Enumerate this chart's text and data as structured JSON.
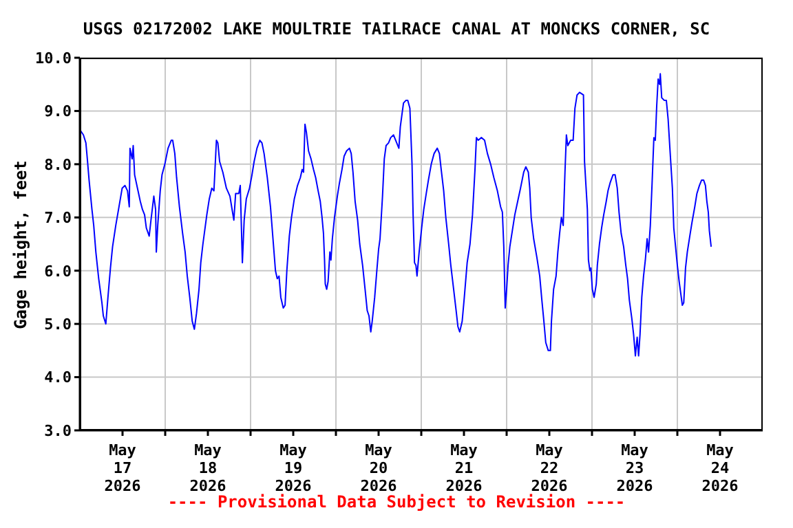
{
  "chart_data": {
    "type": "line",
    "title": "USGS 02172002 LAKE MOULTRIE TAILRACE CANAL AT MONCKS CORNER, SC",
    "ylabel": "Gage height, feet",
    "annotations": [
      "---- Provisional Data Subject to Revision ----"
    ],
    "xlim": [
      "2026-05-17T00:00",
      "2026-05-25T00:00"
    ],
    "xticks": [
      {
        "value": "2026-05-17T12:00",
        "label": "May\n17\n2026"
      },
      {
        "value": "2026-05-18T00:00",
        "label": null
      },
      {
        "value": "2026-05-18T12:00",
        "label": "May\n18\n2026"
      },
      {
        "value": "2026-05-19T00:00",
        "label": null
      },
      {
        "value": "2026-05-19T12:00",
        "label": "May\n19\n2026"
      },
      {
        "value": "2026-05-20T00:00",
        "label": null
      },
      {
        "value": "2026-05-20T12:00",
        "label": "May\n20\n2026"
      },
      {
        "value": "2026-05-21T00:00",
        "label": null
      },
      {
        "value": "2026-05-21T12:00",
        "label": "May\n21\n2026"
      },
      {
        "value": "2026-05-22T00:00",
        "label": null
      },
      {
        "value": "2026-05-22T12:00",
        "label": "May\n22\n2026"
      },
      {
        "value": "2026-05-23T00:00",
        "label": null
      },
      {
        "value": "2026-05-23T12:00",
        "label": "May\n23\n2026"
      },
      {
        "value": "2026-05-24T00:00",
        "label": null
      },
      {
        "value": "2026-05-24T12:00",
        "label": "May\n24\n2026"
      }
    ],
    "ylim": [
      3,
      10
    ],
    "yticks": [
      {
        "value": 3,
        "label": "3.0"
      },
      {
        "value": 4,
        "label": "4.0"
      },
      {
        "value": 5,
        "label": "5.0"
      },
      {
        "value": 6,
        "label": "6.0"
      },
      {
        "value": 7,
        "label": "7.0"
      },
      {
        "value": 8,
        "label": "8.0"
      },
      {
        "value": 9,
        "label": "9.0"
      },
      {
        "value": 10,
        "label": "10.0"
      }
    ],
    "grid": true,
    "marker": "none",
    "line_style": "solid",
    "x": [
      "2026-05-17T00:00",
      "2026-05-17T01:00",
      "2026-05-17T01:42",
      "2026-05-17T02:06",
      "2026-05-17T02:36",
      "2026-05-17T03:24",
      "2026-05-17T03:54",
      "2026-05-17T04:30",
      "2026-05-17T05:18",
      "2026-05-17T06:12",
      "2026-05-17T06:36",
      "2026-05-17T07:18",
      "2026-05-17T07:54",
      "2026-05-17T08:36",
      "2026-05-17T09:12",
      "2026-05-17T10:06",
      "2026-05-17T11:00",
      "2026-05-17T11:54",
      "2026-05-17T12:42",
      "2026-05-17T13:24",
      "2026-05-17T13:54",
      "2026-05-17T14:06",
      "2026-05-17T14:42",
      "2026-05-17T15:00",
      "2026-05-17T15:24",
      "2026-05-17T16:12",
      "2026-05-17T17:00",
      "2026-05-17T17:36",
      "2026-05-17T18:12",
      "2026-05-17T18:42",
      "2026-05-17T19:30",
      "2026-05-17T20:00",
      "2026-05-17T20:48",
      "2026-05-17T21:18",
      "2026-05-17T21:30",
      "2026-05-17T21:54",
      "2026-05-17T22:36",
      "2026-05-17T23:06",
      "2026-05-17T23:54",
      "2026-05-18T00:48",
      "2026-05-18T01:42",
      "2026-05-18T02:06",
      "2026-05-18T02:42",
      "2026-05-18T03:12",
      "2026-05-18T04:00",
      "2026-05-18T04:54",
      "2026-05-18T05:36",
      "2026-05-18T06:12",
      "2026-05-18T06:54",
      "2026-05-18T07:36",
      "2026-05-18T08:12",
      "2026-05-18T08:48",
      "2026-05-18T09:30",
      "2026-05-18T10:00",
      "2026-05-18T10:36",
      "2026-05-18T11:42",
      "2026-05-18T12:24",
      "2026-05-18T13:06",
      "2026-05-18T13:42",
      "2026-05-18T14:24",
      "2026-05-18T14:48",
      "2026-05-18T15:18",
      "2026-05-18T16:12",
      "2026-05-18T17:12",
      "2026-05-18T18:12",
      "2026-05-18T18:48",
      "2026-05-18T19:18",
      "2026-05-18T19:48",
      "2026-05-18T20:42",
      "2026-05-18T21:06",
      "2026-05-18T21:42",
      "2026-05-18T22:12",
      "2026-05-18T22:48",
      "2026-05-18T23:42",
      "2026-05-19T00:24",
      "2026-05-19T01:00",
      "2026-05-19T01:48",
      "2026-05-19T02:36",
      "2026-05-19T03:12",
      "2026-05-19T03:48",
      "2026-05-19T04:42",
      "2026-05-19T05:36",
      "2026-05-19T06:18",
      "2026-05-19T07:00",
      "2026-05-19T07:30",
      "2026-05-19T08:00",
      "2026-05-19T08:30",
      "2026-05-19T09:12",
      "2026-05-19T09:42",
      "2026-05-19T10:12",
      "2026-05-19T10:54",
      "2026-05-19T11:30",
      "2026-05-19T12:18",
      "2026-05-19T13:12",
      "2026-05-19T14:00",
      "2026-05-19T14:30",
      "2026-05-19T14:54",
      "2026-05-19T15:18",
      "2026-05-19T15:42",
      "2026-05-19T16:18",
      "2026-05-19T17:00",
      "2026-05-19T17:42",
      "2026-05-19T18:18",
      "2026-05-19T19:00",
      "2026-05-19T19:36",
      "2026-05-19T20:06",
      "2026-05-19T20:30",
      "2026-05-19T20:48",
      "2026-05-19T21:00",
      "2026-05-19T21:24",
      "2026-05-19T21:48",
      "2026-05-19T22:18",
      "2026-05-19T22:36",
      "2026-05-19T23:00",
      "2026-05-19T23:36",
      "2026-05-20T00:24",
      "2026-05-20T01:00",
      "2026-05-20T01:42",
      "2026-05-20T02:18",
      "2026-05-20T03:00",
      "2026-05-20T03:48",
      "2026-05-20T04:18",
      "2026-05-20T04:48",
      "2026-05-20T05:24",
      "2026-05-20T06:06",
      "2026-05-20T06:42",
      "2026-05-20T07:30",
      "2026-05-20T08:12",
      "2026-05-20T08:48",
      "2026-05-20T09:18",
      "2026-05-20T09:48",
      "2026-05-20T10:12",
      "2026-05-20T10:54",
      "2026-05-20T11:30",
      "2026-05-20T12:00",
      "2026-05-20T12:24",
      "2026-05-20T13:06",
      "2026-05-20T13:36",
      "2026-05-20T14:06",
      "2026-05-20T14:48",
      "2026-05-20T15:24",
      "2026-05-20T16:12",
      "2026-05-20T16:48",
      "2026-05-20T17:42",
      "2026-05-20T18:06",
      "2026-05-20T18:30",
      "2026-05-20T19:00",
      "2026-05-20T19:42",
      "2026-05-20T20:12",
      "2026-05-20T20:48",
      "2026-05-20T21:24",
      "2026-05-20T21:42",
      "2026-05-20T22:06",
      "2026-05-20T22:30",
      "2026-05-20T22:48",
      "2026-05-20T23:24",
      "2026-05-21T00:06",
      "2026-05-21T00:42",
      "2026-05-21T01:24",
      "2026-05-21T02:00",
      "2026-05-21T02:48",
      "2026-05-21T03:36",
      "2026-05-21T04:30",
      "2026-05-21T05:06",
      "2026-05-21T05:36",
      "2026-05-21T06:18",
      "2026-05-21T06:54",
      "2026-05-21T07:42",
      "2026-05-21T08:18",
      "2026-05-21T09:06",
      "2026-05-21T09:48",
      "2026-05-21T10:18",
      "2026-05-21T10:48",
      "2026-05-21T11:30",
      "2026-05-21T12:06",
      "2026-05-21T12:54",
      "2026-05-21T13:42",
      "2026-05-21T14:24",
      "2026-05-21T15:06",
      "2026-05-21T15:30",
      "2026-05-21T16:00",
      "2026-05-21T16:54",
      "2026-05-21T17:48",
      "2026-05-21T18:36",
      "2026-05-21T19:30",
      "2026-05-21T20:24",
      "2026-05-21T21:24",
      "2026-05-21T22:18",
      "2026-05-21T22:48",
      "2026-05-21T23:12",
      "2026-05-21T23:36",
      "2026-05-22T00:00",
      "2026-05-22T00:24",
      "2026-05-22T00:54",
      "2026-05-22T01:36",
      "2026-05-22T02:18",
      "2026-05-22T03:06",
      "2026-05-22T03:54",
      "2026-05-22T04:48",
      "2026-05-22T05:24",
      "2026-05-22T06:06",
      "2026-05-22T06:30",
      "2026-05-22T06:54",
      "2026-05-22T07:36",
      "2026-05-22T08:30",
      "2026-05-22T09:18",
      "2026-05-22T09:54",
      "2026-05-22T10:24",
      "2026-05-22T11:00",
      "2026-05-22T11:42",
      "2026-05-22T12:18",
      "2026-05-22T12:36",
      "2026-05-22T13:12",
      "2026-05-22T13:54",
      "2026-05-22T14:24",
      "2026-05-22T14:54",
      "2026-05-22T15:24",
      "2026-05-22T15:54",
      "2026-05-22T16:24",
      "2026-05-22T16:48",
      "2026-05-22T17:12",
      "2026-05-22T18:00",
      "2026-05-22T18:42",
      "2026-05-22T19:12",
      "2026-05-22T19:48",
      "2026-05-22T20:30",
      "2026-05-22T21:36",
      "2026-05-22T21:54",
      "2026-05-22T22:18",
      "2026-05-22T22:42",
      "2026-05-22T23:00",
      "2026-05-22T23:24",
      "2026-05-22T23:42",
      "2026-05-23T00:06",
      "2026-05-23T00:36",
      "2026-05-23T01:12",
      "2026-05-23T01:30",
      "2026-05-23T02:06",
      "2026-05-23T02:42",
      "2026-05-23T03:18",
      "2026-05-23T04:00",
      "2026-05-23T04:30",
      "2026-05-23T05:06",
      "2026-05-23T05:54",
      "2026-05-23T06:30",
      "2026-05-23T07:06",
      "2026-05-23T07:36",
      "2026-05-23T08:12",
      "2026-05-23T08:54",
      "2026-05-23T09:30",
      "2026-05-23T10:00",
      "2026-05-23T10:30",
      "2026-05-23T11:12",
      "2026-05-23T11:42",
      "2026-05-23T12:12",
      "2026-05-23T12:42",
      "2026-05-23T13:06",
      "2026-05-23T13:30",
      "2026-05-23T14:00",
      "2026-05-23T14:30",
      "2026-05-23T15:00",
      "2026-05-23T15:30",
      "2026-05-23T15:54",
      "2026-05-23T16:24",
      "2026-05-23T16:54",
      "2026-05-23T17:24",
      "2026-05-23T17:48",
      "2026-05-23T18:12",
      "2026-05-23T18:36",
      "2026-05-23T19:00",
      "2026-05-23T19:12",
      "2026-05-23T19:36",
      "2026-05-23T20:18",
      "2026-05-23T20:54",
      "2026-05-23T21:24",
      "2026-05-23T21:54",
      "2026-05-23T22:36",
      "2026-05-23T23:00",
      "2026-05-23T23:30",
      "2026-05-24T00:00",
      "2026-05-24T00:30",
      "2026-05-24T01:00",
      "2026-05-24T01:24",
      "2026-05-24T01:48",
      "2026-05-24T02:18",
      "2026-05-24T02:48",
      "2026-05-24T03:30",
      "2026-05-24T04:06",
      "2026-05-24T04:54",
      "2026-05-24T05:30",
      "2026-05-24T06:12",
      "2026-05-24T06:48",
      "2026-05-24T07:24",
      "2026-05-24T07:54",
      "2026-05-24T08:18",
      "2026-05-24T08:42",
      "2026-05-24T09:00",
      "2026-05-24T09:30"
    ],
    "series": [
      {
        "color": "#0000ff",
        "values": [
          8.65,
          8.55,
          8.4,
          8.1,
          7.7,
          7.15,
          6.85,
          6.35,
          5.85,
          5.4,
          5.15,
          5.0,
          5.5,
          6.05,
          6.45,
          6.85,
          7.2,
          7.55,
          7.6,
          7.5,
          7.2,
          8.3,
          8.1,
          8.35,
          7.8,
          7.55,
          7.3,
          7.15,
          7.05,
          6.8,
          6.65,
          6.95,
          7.4,
          7.15,
          6.35,
          6.85,
          7.5,
          7.8,
          8.0,
          8.3,
          8.45,
          8.45,
          8.2,
          7.75,
          7.2,
          6.7,
          6.35,
          5.9,
          5.5,
          5.05,
          4.9,
          5.2,
          5.65,
          6.15,
          6.5,
          7.05,
          7.35,
          7.55,
          7.5,
          8.45,
          8.4,
          8.05,
          7.85,
          7.55,
          7.4,
          7.15,
          6.95,
          7.45,
          7.45,
          7.6,
          6.15,
          6.95,
          7.35,
          7.55,
          7.8,
          8.05,
          8.3,
          8.45,
          8.4,
          8.2,
          7.75,
          7.2,
          6.6,
          6.0,
          5.85,
          5.9,
          5.5,
          5.3,
          5.35,
          6.0,
          6.65,
          7.0,
          7.35,
          7.6,
          7.75,
          7.9,
          7.85,
          8.75,
          8.6,
          8.25,
          8.1,
          7.9,
          7.75,
          7.5,
          7.3,
          7.0,
          6.7,
          6.2,
          5.75,
          5.65,
          5.8,
          6.35,
          6.2,
          6.6,
          7.0,
          7.4,
          7.65,
          7.9,
          8.15,
          8.25,
          8.3,
          8.2,
          7.85,
          7.3,
          6.95,
          6.5,
          6.1,
          5.65,
          5.25,
          5.15,
          4.85,
          5.05,
          5.5,
          6.0,
          6.4,
          6.6,
          7.4,
          8.1,
          8.35,
          8.4,
          8.5,
          8.55,
          8.45,
          8.3,
          8.7,
          8.9,
          9.15,
          9.2,
          9.2,
          9.05,
          8.0,
          7.05,
          6.15,
          6.1,
          5.9,
          6.35,
          6.8,
          7.15,
          7.45,
          7.7,
          8.0,
          8.2,
          8.3,
          8.2,
          7.9,
          7.5,
          7.0,
          6.5,
          6.1,
          5.65,
          5.25,
          4.95,
          4.85,
          5.05,
          5.5,
          6.15,
          6.5,
          7.05,
          7.9,
          8.5,
          8.45,
          8.5,
          8.45,
          8.2,
          8.0,
          7.75,
          7.5,
          7.2,
          7.1,
          6.45,
          5.3,
          5.65,
          6.1,
          6.45,
          6.75,
          7.05,
          7.3,
          7.55,
          7.85,
          7.95,
          7.85,
          7.55,
          7.0,
          6.6,
          6.25,
          5.9,
          5.45,
          5.1,
          4.65,
          4.5,
          4.5,
          5.05,
          5.65,
          5.9,
          6.35,
          6.7,
          7.0,
          6.85,
          7.85,
          8.55,
          8.35,
          8.45,
          8.45,
          9.05,
          9.3,
          9.35,
          9.3,
          8.05,
          7.6,
          7.15,
          6.2,
          6.0,
          6.05,
          5.65,
          5.5,
          5.75,
          6.1,
          6.5,
          6.8,
          7.05,
          7.3,
          7.5,
          7.65,
          7.8,
          7.8,
          7.55,
          7.1,
          6.7,
          6.45,
          6.1,
          5.85,
          5.45,
          5.1,
          4.8,
          4.4,
          4.75,
          4.4,
          4.8,
          5.5,
          5.9,
          6.2,
          6.6,
          6.35,
          6.85,
          7.65,
          8.5,
          8.45,
          9.1,
          9.6,
          9.5,
          9.7,
          9.25,
          9.2,
          9.2,
          8.85,
          8.3,
          7.55,
          6.8,
          6.45,
          6.1,
          5.8,
          5.55,
          5.35,
          5.4,
          6.05,
          6.35,
          6.65,
          6.9,
          7.2,
          7.45,
          7.6,
          7.7,
          7.7,
          7.6,
          7.3,
          7.1,
          6.75,
          6.45
        ]
      }
    ]
  }
}
